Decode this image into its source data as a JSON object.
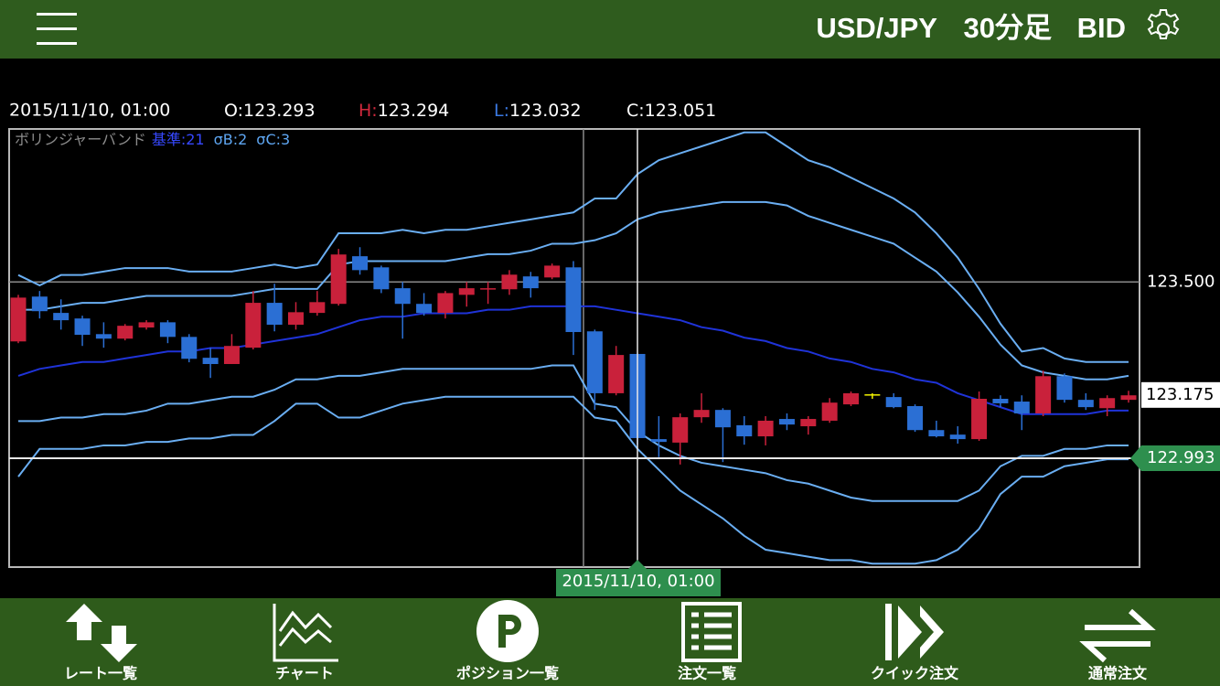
{
  "header": {
    "symbol": "USD/JPY",
    "timeframe": "30分足",
    "side": "BID"
  },
  "chart_data": {
    "type": "candlestick",
    "info_labels": [
      "O:",
      "H:",
      "L:",
      "C:"
    ],
    "indicator": {
      "name": "ボリンジャーバンド",
      "params": [
        "基準:21",
        "σB:2",
        "σC:3"
      ]
    },
    "up_color": "#c9213b",
    "down_color": "#2b6fd4",
    "doji_color": "#f2f200",
    "candles": {
      "open": [
        123.329,
        123.458,
        123.411,
        123.395,
        123.35,
        123.337,
        123.369,
        123.384,
        123.342,
        123.282,
        123.264,
        123.311,
        123.44,
        123.377,
        123.411,
        123.437,
        123.574,
        123.542,
        123.482,
        123.437,
        123.411,
        123.463,
        123.479,
        123.479,
        123.516,
        123.513,
        123.542,
        123.358,
        123.18,
        123.293,
        123.048,
        123.038,
        123.111,
        123.132,
        123.088,
        123.056,
        123.106,
        123.085,
        123.101,
        123.148,
        123.177,
        123.169,
        123.143,
        123.074,
        123.061,
        123.048,
        123.164,
        123.156,
        123.122,
        123.229,
        123.161,
        123.137,
        123.161
      ],
      "high": [
        123.463,
        123.474,
        123.45,
        123.403,
        123.384,
        123.379,
        123.39,
        123.39,
        123.35,
        123.311,
        123.35,
        123.474,
        123.495,
        123.442,
        123.474,
        123.595,
        123.6,
        123.547,
        123.5,
        123.468,
        123.474,
        123.5,
        123.5,
        123.534,
        123.529,
        123.553,
        123.56,
        123.363,
        123.316,
        123.294,
        123.114,
        123.122,
        123.18,
        123.137,
        123.114,
        123.114,
        123.122,
        123.114,
        123.166,
        123.185,
        123.18,
        123.18,
        123.148,
        123.101,
        123.085,
        123.185,
        123.174,
        123.174,
        123.245,
        123.237,
        123.18,
        123.174,
        123.187
      ],
      "low": [
        123.324,
        123.395,
        123.363,
        123.316,
        123.311,
        123.332,
        123.363,
        123.324,
        123.269,
        123.224,
        123.264,
        123.306,
        123.358,
        123.363,
        123.403,
        123.432,
        123.521,
        123.468,
        123.337,
        123.403,
        123.395,
        123.429,
        123.437,
        123.463,
        123.455,
        123.508,
        123.29,
        123.132,
        123.174,
        123.032,
        122.996,
        122.975,
        123.095,
        122.982,
        123.032,
        123.03,
        123.074,
        123.061,
        123.095,
        123.143,
        123.164,
        123.137,
        123.069,
        123.053,
        123.035,
        123.043,
        123.14,
        123.074,
        123.114,
        123.153,
        123.132,
        123.114,
        123.153
      ],
      "close": [
        123.455,
        123.416,
        123.39,
        123.348,
        123.337,
        123.374,
        123.384,
        123.342,
        123.279,
        123.264,
        123.316,
        123.44,
        123.377,
        123.413,
        123.442,
        123.579,
        123.534,
        123.479,
        123.437,
        123.411,
        123.468,
        123.482,
        123.482,
        123.521,
        123.482,
        123.547,
        123.356,
        123.18,
        123.29,
        123.051,
        123.04,
        123.111,
        123.132,
        123.082,
        123.056,
        123.101,
        123.09,
        123.106,
        123.153,
        123.18,
        123.177,
        123.14,
        123.074,
        123.056,
        123.048,
        123.164,
        123.151,
        123.122,
        123.229,
        123.161,
        123.14,
        123.166,
        123.174
      ]
    },
    "series": [
      {
        "color": "#6aaef2",
        "values": [
          123.52,
          123.49,
          123.52,
          123.52,
          123.53,
          123.54,
          123.54,
          123.54,
          123.53,
          123.53,
          123.53,
          123.54,
          123.55,
          123.54,
          123.55,
          123.64,
          123.64,
          123.64,
          123.65,
          123.64,
          123.65,
          123.65,
          123.66,
          123.67,
          123.68,
          123.69,
          123.7,
          123.74,
          123.74,
          123.81,
          123.85,
          123.87,
          123.89,
          123.91,
          123.93,
          123.93,
          123.89,
          123.85,
          123.83,
          123.8,
          123.77,
          123.74,
          123.7,
          123.64,
          123.57,
          123.48,
          123.38,
          123.3,
          123.31,
          123.28,
          123.27,
          123.27,
          123.27
        ]
      },
      {
        "color": "#6aaef2",
        "values": [
          123.42,
          123.42,
          123.43,
          123.44,
          123.44,
          123.45,
          123.46,
          123.46,
          123.46,
          123.46,
          123.46,
          123.47,
          123.48,
          123.48,
          123.48,
          123.55,
          123.56,
          123.56,
          123.56,
          123.56,
          123.56,
          123.57,
          123.58,
          123.58,
          123.59,
          123.61,
          123.61,
          123.62,
          123.64,
          123.68,
          123.7,
          123.71,
          123.72,
          123.73,
          123.73,
          123.73,
          123.72,
          123.69,
          123.67,
          123.65,
          123.63,
          123.61,
          123.57,
          123.53,
          123.47,
          123.4,
          123.32,
          123.26,
          123.24,
          123.23,
          123.22,
          123.22,
          123.23
        ]
      },
      {
        "color": "#1f33d8",
        "values": [
          123.23,
          123.25,
          123.26,
          123.27,
          123.27,
          123.28,
          123.29,
          123.3,
          123.3,
          123.31,
          123.31,
          123.32,
          123.33,
          123.34,
          123.35,
          123.37,
          123.39,
          123.4,
          123.4,
          123.41,
          123.41,
          123.41,
          123.42,
          123.42,
          123.43,
          123.43,
          123.43,
          123.43,
          123.42,
          123.41,
          123.4,
          123.39,
          123.37,
          123.36,
          123.34,
          123.33,
          123.31,
          123.3,
          123.28,
          123.27,
          123.25,
          123.24,
          123.22,
          123.21,
          123.18,
          123.16,
          123.14,
          123.12,
          123.12,
          123.12,
          123.12,
          123.13,
          123.13
        ]
      },
      {
        "color": "#6aaef2",
        "values": [
          123.1,
          123.1,
          123.11,
          123.11,
          123.12,
          123.12,
          123.13,
          123.15,
          123.15,
          123.16,
          123.17,
          123.17,
          123.19,
          123.22,
          123.22,
          123.23,
          123.23,
          123.24,
          123.25,
          123.25,
          123.25,
          123.25,
          123.25,
          123.25,
          123.25,
          123.26,
          123.26,
          123.15,
          123.14,
          123.07,
          123.03,
          123.0,
          122.98,
          122.97,
          122.96,
          122.95,
          122.93,
          122.92,
          122.9,
          122.88,
          122.87,
          122.87,
          122.87,
          122.87,
          122.87,
          122.9,
          122.97,
          123.0,
          123.0,
          123.02,
          123.02,
          123.03,
          123.03
        ]
      },
      {
        "color": "#6aaef2",
        "values": [
          122.94,
          123.02,
          123.02,
          123.02,
          123.03,
          123.03,
          123.04,
          123.04,
          123.05,
          123.05,
          123.06,
          123.06,
          123.1,
          123.15,
          123.15,
          123.11,
          123.11,
          123.13,
          123.15,
          123.16,
          123.17,
          123.17,
          123.17,
          123.17,
          123.17,
          123.17,
          123.17,
          123.11,
          123.1,
          123.02,
          122.96,
          122.9,
          122.86,
          122.82,
          122.77,
          122.73,
          122.72,
          122.71,
          122.7,
          122.7,
          122.69,
          122.69,
          122.69,
          122.7,
          122.73,
          122.79,
          122.89,
          122.94,
          122.94,
          122.97,
          122.98,
          122.99,
          122.99
        ]
      }
    ],
    "ylim": [
      122.68,
      123.94
    ],
    "yticks": [
      {
        "value": 123.5,
        "label": "123.500"
      }
    ],
    "grid": true,
    "last_price": 123.175,
    "crosshair": {
      "date": "2015/11/10, 01:00",
      "price": 122.993
    }
  },
  "nav": {
    "items": [
      {
        "label": "レート一覧"
      },
      {
        "label": "チャート"
      },
      {
        "label": "ポジション一覧"
      },
      {
        "label": "注文一覧"
      },
      {
        "label": "クイック注文"
      },
      {
        "label": "通常注文"
      }
    ]
  }
}
